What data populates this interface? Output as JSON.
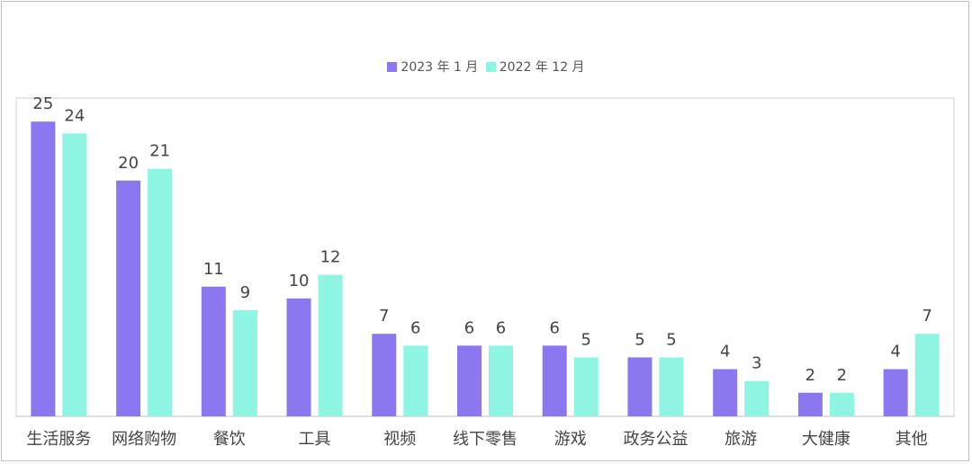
{
  "chart_data": {
    "type": "bar",
    "categories": [
      "生活服务",
      "网络购物",
      "餐饮",
      "工具",
      "视频",
      "线下零售",
      "游戏",
      "政务公益",
      "旅游",
      "大健康",
      "其他"
    ],
    "series": [
      {
        "name": "2023 年 1 月",
        "color": "#8b78f0",
        "values": [
          25,
          20,
          11,
          10,
          7,
          6,
          6,
          5,
          4,
          2,
          4
        ]
      },
      {
        "name": "2022 年 12 月",
        "color": "#8ef5e3",
        "values": [
          24,
          21,
          9,
          12,
          6,
          6,
          5,
          5,
          3,
          2,
          7
        ]
      }
    ],
    "ylim": [
      0,
      27
    ],
    "grid": false,
    "legend": "top-center"
  }
}
